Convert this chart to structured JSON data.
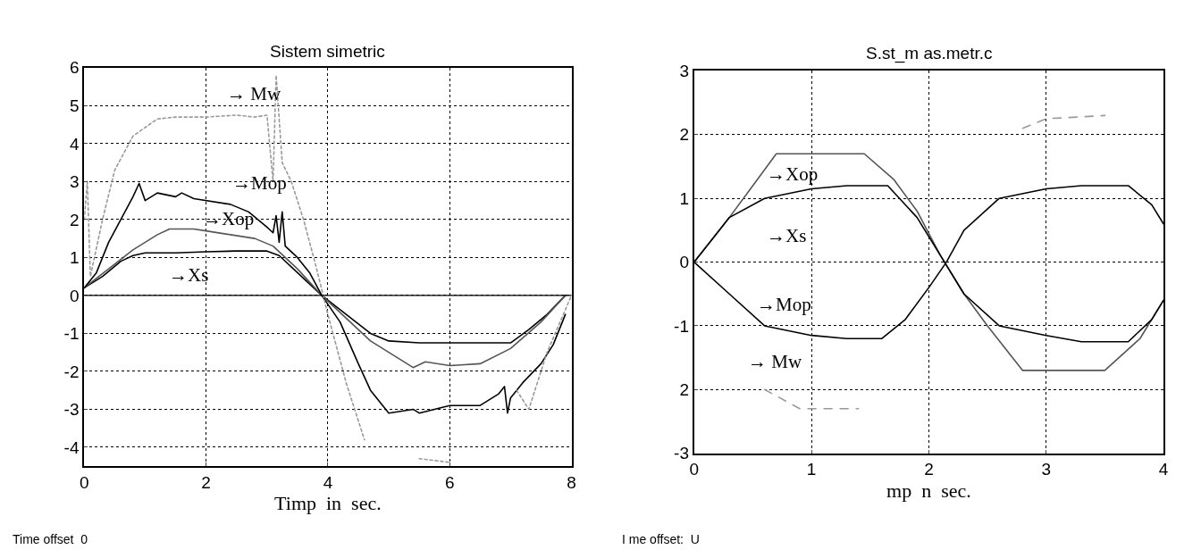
{
  "chart_data": [
    {
      "type": "line",
      "title": "Sistem simetric",
      "xlabel": "Timp  in  sec.",
      "xlim": [
        0,
        8
      ],
      "xticks": [
        0,
        2,
        4,
        6,
        8
      ],
      "ylim": [
        -4.5,
        6
      ],
      "yticks": [
        -4,
        -3,
        -2,
        -1,
        0,
        1,
        2,
        3,
        4,
        5,
        6
      ],
      "grid": true,
      "ref_lines": [
        {
          "axis": "y",
          "value": 0,
          "color": "#000000",
          "line_style": "solid"
        }
      ],
      "annotations": [
        "→ Mw",
        "→Mop",
        "→Xop",
        "→Xs",
        "Time offset  0"
      ],
      "series": [
        {
          "color": "#000000",
          "line_style": "solid",
          "x": [
            0,
            0.3,
            0.6,
            0.8,
            1.0,
            1.5,
            2,
            2.5,
            3.0,
            3.2,
            3.5,
            3.9,
            4.3,
            4.7,
            5.0,
            5.5,
            6,
            6.5,
            7.0,
            7.3,
            7.6,
            7.9
          ],
          "values": [
            0.2,
            0.5,
            0.9,
            1.05,
            1.12,
            1.12,
            1.15,
            1.17,
            1.17,
            1.05,
            0.6,
            0,
            -0.5,
            -1.0,
            -1.2,
            -1.25,
            -1.25,
            -1.25,
            -1.25,
            -0.9,
            -0.5,
            0
          ]
        },
        {
          "color": "#555555",
          "line_style": "solid",
          "x": [
            0,
            0.4,
            0.8,
            1.2,
            1.4,
            1.8,
            2.0,
            2.4,
            2.8,
            3.1,
            3.5,
            3.9,
            4.3,
            4.7,
            5.1,
            5.4,
            5.6,
            6.0,
            6.5,
            7.0,
            7.5,
            7.9
          ],
          "values": [
            0.2,
            0.7,
            1.2,
            1.6,
            1.75,
            1.75,
            1.7,
            1.6,
            1.5,
            1.3,
            0.7,
            0,
            -0.6,
            -1.2,
            -1.6,
            -1.9,
            -1.75,
            -1.85,
            -1.8,
            -1.4,
            -0.7,
            0
          ]
        },
        {
          "color": "#000000",
          "line_style": "solid",
          "x": [
            0,
            0.2,
            0.4,
            0.6,
            0.8,
            0.9,
            1.0,
            1.2,
            1.5,
            1.6,
            1.8,
            2.4,
            2.7,
            3.0,
            3.1,
            3.15,
            3.2,
            3.25,
            3.3,
            3.5,
            3.7,
            3.9,
            4.2,
            4.5,
            4.7,
            4.9,
            5.0,
            5.4,
            5.5,
            6.0,
            6.5,
            6.8,
            6.9,
            6.95,
            7.0,
            7.2,
            7.5,
            7.7,
            7.9
          ],
          "values": [
            0.2,
            0.6,
            1.4,
            2.0,
            2.6,
            2.95,
            2.5,
            2.7,
            2.6,
            2.7,
            2.55,
            2.4,
            2.2,
            1.8,
            1.65,
            2.1,
            1.4,
            2.2,
            1.3,
            1.0,
            0.6,
            0,
            -0.7,
            -1.8,
            -2.5,
            -2.9,
            -3.1,
            -3.0,
            -3.1,
            -2.9,
            -2.9,
            -2.6,
            -2.4,
            -3.1,
            -2.7,
            -2.3,
            -1.8,
            -1.3,
            -0.5
          ]
        },
        {
          "color": "#999999",
          "line_style": "dotted",
          "x": [
            0,
            0.05,
            0.1,
            0.3,
            0.5,
            0.8,
            1.2,
            1.5,
            2.0,
            2.5,
            2.8,
            3.0,
            3.1,
            3.15,
            3.25,
            3.4,
            3.6,
            3.8,
            4.0,
            4.3,
            4.6,
            4.9,
            5.5,
            6,
            6.5,
            7.0,
            7.1,
            7.3,
            7.6,
            8
          ],
          "values": [
            2.0,
            3.0,
            0.5,
            2.0,
            3.3,
            4.2,
            4.65,
            4.7,
            4.7,
            4.75,
            4.7,
            4.75,
            3.0,
            5.8,
            3.5,
            3.0,
            2.0,
            0.8,
            -0.5,
            -2.3,
            -3.8,
            null,
            -4.3,
            -4.4,
            null,
            null,
            -2.5,
            -3.0,
            -1.5,
            0
          ]
        }
      ]
    },
    {
      "type": "line",
      "title": "S.st_m as.metr.c",
      "xlabel": "mp  n  sec.",
      "xlim": [
        0,
        4
      ],
      "xticks": [
        0,
        1,
        2,
        3,
        4
      ],
      "ylim": [
        -3,
        3
      ],
      "yticks": [
        {
          "value": -3,
          "label": "-3"
        },
        {
          "value": -2,
          "label": "2"
        },
        -1,
        0,
        1,
        2,
        3
      ],
      "grid": true,
      "annotations": [
        "→Xop",
        "→Xs",
        "→Mop",
        "→ Mw",
        "I me offset:  U"
      ],
      "series": [
        {
          "color": "#555555",
          "line_style": "solid",
          "x": [
            0,
            0.3,
            0.5,
            0.7,
            1.45,
            1.7,
            1.9,
            2.1,
            2.3,
            2.5,
            2.8,
            3.5,
            3.8,
            4.0
          ],
          "values": [
            0,
            0.7,
            1.2,
            1.7,
            1.7,
            1.3,
            0.8,
            0.1,
            -0.5,
            -1.0,
            -1.7,
            -1.7,
            -1.2,
            -0.6
          ]
        },
        {
          "color": "#000000",
          "line_style": "solid",
          "x": [
            0,
            0.3,
            0.6,
            1.0,
            1.3,
            1.65,
            1.9,
            2.1,
            2.3,
            2.6,
            3.0,
            3.3,
            3.7,
            3.9,
            4.0
          ],
          "values": [
            0,
            0.7,
            1.0,
            1.15,
            1.2,
            1.2,
            0.7,
            0.1,
            -0.5,
            -1.0,
            -1.15,
            -1.25,
            -1.25,
            -0.9,
            -0.6
          ]
        },
        {
          "color": "#000000",
          "line_style": "solid",
          "x": [
            0,
            0.3,
            0.6,
            1.0,
            1.3,
            1.6,
            1.8,
            2.0,
            2.15,
            2.3,
            2.6,
            3.0,
            3.3,
            3.7,
            3.9,
            4.0
          ],
          "values": [
            0,
            -0.5,
            -1.0,
            -1.15,
            -1.2,
            -1.2,
            -0.9,
            -0.4,
            0,
            0.5,
            1.0,
            1.15,
            1.2,
            1.2,
            0.9,
            0.6
          ]
        },
        {
          "color": "#999999",
          "line_style": "dashed",
          "x": [
            0.6,
            0.9,
            1.4,
            2.1,
            2.8,
            3.0,
            3.5
          ],
          "values": [
            -2.0,
            -2.3,
            -2.3,
            null,
            2.1,
            2.25,
            2.3
          ]
        }
      ]
    }
  ]
}
